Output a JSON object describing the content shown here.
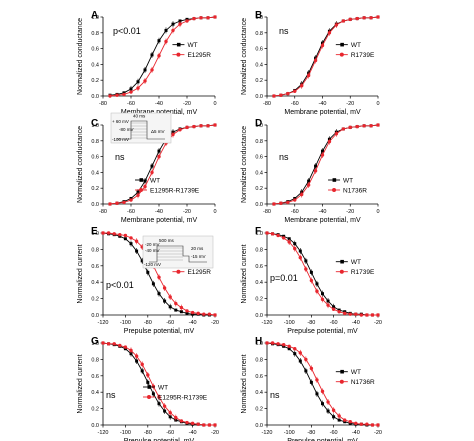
{
  "chart_data": [
    {
      "panel": "A",
      "type": "line",
      "xlabel": "Membrane potential, mV",
      "ylabel": "Normalized conductance",
      "xlim": [
        -80,
        0
      ],
      "ylim": [
        0,
        1
      ],
      "xticks": [
        "-80",
        "-60",
        "-40",
        "-20",
        "0"
      ],
      "yticks": [
        "0.0",
        "0.2",
        "0.4",
        "0.6",
        "0.8",
        "1.0"
      ],
      "annotation": "p<0.01",
      "legend_placement": "center-right",
      "series": [
        {
          "name": "WT",
          "color": "#000000",
          "marker": "square",
          "x": [
            -75,
            -70,
            -65,
            -60,
            -55,
            -50,
            -45,
            -40,
            -35,
            -30,
            -25,
            -20,
            -15,
            -10,
            -5,
            0
          ],
          "y": [
            0.01,
            0.02,
            0.04,
            0.09,
            0.18,
            0.33,
            0.52,
            0.7,
            0.83,
            0.91,
            0.95,
            0.97,
            0.98,
            0.99,
            0.99,
            1.0
          ]
        },
        {
          "name": "E1295R",
          "color": "#e8262e",
          "marker": "circle",
          "x": [
            -75,
            -70,
            -65,
            -60,
            -55,
            -50,
            -45,
            -40,
            -35,
            -30,
            -25,
            -20,
            -15,
            -10,
            -5,
            0
          ],
          "y": [
            0.0,
            0.01,
            0.02,
            0.05,
            0.1,
            0.19,
            0.33,
            0.51,
            0.69,
            0.83,
            0.91,
            0.95,
            0.98,
            0.99,
            0.99,
            1.0
          ]
        }
      ]
    },
    {
      "panel": "B",
      "type": "line",
      "xlabel": "Membrane potential, mV",
      "ylabel": "Normalized conductance",
      "xlim": [
        -80,
        0
      ],
      "ylim": [
        0,
        1
      ],
      "xticks": [
        "-80",
        "-60",
        "-40",
        "-20",
        "0"
      ],
      "yticks": [
        "0.0",
        "0.2",
        "0.4",
        "0.6",
        "0.8",
        "1.0"
      ],
      "annotation": "ns",
      "legend_placement": "center-right",
      "series": [
        {
          "name": "WT",
          "color": "#000000",
          "marker": "square",
          "x": [
            -75,
            -70,
            -65,
            -60,
            -55,
            -50,
            -45,
            -40,
            -35,
            -30,
            -25,
            -20,
            -15,
            -10,
            -5,
            0
          ],
          "y": [
            0.0,
            0.01,
            0.03,
            0.07,
            0.15,
            0.29,
            0.48,
            0.67,
            0.82,
            0.91,
            0.95,
            0.97,
            0.98,
            0.99,
            0.99,
            1.0
          ]
        },
        {
          "name": "R1739E",
          "color": "#e8262e",
          "marker": "circle",
          "x": [
            -75,
            -70,
            -65,
            -60,
            -55,
            -50,
            -45,
            -40,
            -35,
            -30,
            -25,
            -20,
            -15,
            -10,
            -5,
            0
          ],
          "y": [
            0.0,
            0.01,
            0.03,
            0.06,
            0.13,
            0.26,
            0.45,
            0.64,
            0.8,
            0.9,
            0.95,
            0.97,
            0.98,
            0.99,
            0.99,
            1.0
          ]
        }
      ]
    },
    {
      "panel": "C",
      "type": "line",
      "xlabel": "Membrane potential, mV",
      "ylabel": "Normalized conductance",
      "xlim": [
        -80,
        0
      ],
      "ylim": [
        0,
        1
      ],
      "xticks": [
        "-80",
        "-60",
        "-40",
        "-20",
        "0"
      ],
      "yticks": [
        "0.0",
        "0.2",
        "0.4",
        "0.6",
        "0.8",
        "1.0"
      ],
      "annotation": "ns",
      "legend_placement": "lower-right",
      "inset": [
        "40 ms",
        "+ 60 mV",
        "-80 mV",
        "-100 mV",
        "Δ5 mV"
      ],
      "series": [
        {
          "name": "WT",
          "color": "#000000",
          "marker": "square",
          "x": [
            -75,
            -70,
            -65,
            -60,
            -55,
            -50,
            -45,
            -40,
            -35,
            -30,
            -25,
            -20,
            -15,
            -10,
            -5,
            0
          ],
          "y": [
            0.0,
            0.01,
            0.03,
            0.07,
            0.15,
            0.29,
            0.48,
            0.67,
            0.82,
            0.91,
            0.95,
            0.97,
            0.98,
            0.99,
            0.99,
            1.0
          ]
        },
        {
          "name": "E1295R-R1739E",
          "color": "#e8262e",
          "marker": "circle",
          "x": [
            -75,
            -70,
            -65,
            -60,
            -55,
            -50,
            -45,
            -40,
            -35,
            -30,
            -25,
            -20,
            -15,
            -10,
            -5,
            0
          ],
          "y": [
            0.0,
            0.01,
            0.02,
            0.05,
            0.11,
            0.22,
            0.4,
            0.6,
            0.77,
            0.88,
            0.94,
            0.97,
            0.98,
            0.99,
            0.99,
            1.0
          ]
        }
      ]
    },
    {
      "panel": "D",
      "type": "line",
      "xlabel": "Membrane potential, mV",
      "ylabel": "Normalized conductance",
      "xlim": [
        -80,
        0
      ],
      "ylim": [
        0,
        1
      ],
      "xticks": [
        "-80",
        "-60",
        "-40",
        "-20",
        "0"
      ],
      "yticks": [
        "0.0",
        "0.2",
        "0.4",
        "0.6",
        "0.8",
        "1.0"
      ],
      "annotation": "ns",
      "legend_placement": "lower-right",
      "series": [
        {
          "name": "WT",
          "color": "#000000",
          "marker": "square",
          "x": [
            -75,
            -70,
            -65,
            -60,
            -55,
            -50,
            -45,
            -40,
            -35,
            -30,
            -25,
            -20,
            -15,
            -10,
            -5,
            0
          ],
          "y": [
            0.0,
            0.01,
            0.03,
            0.07,
            0.15,
            0.29,
            0.48,
            0.67,
            0.82,
            0.91,
            0.95,
            0.97,
            0.98,
            0.99,
            0.99,
            1.0
          ]
        },
        {
          "name": "N1736R",
          "color": "#e8262e",
          "marker": "circle",
          "x": [
            -75,
            -70,
            -65,
            -60,
            -55,
            -50,
            -45,
            -40,
            -35,
            -30,
            -25,
            -20,
            -15,
            -10,
            -5,
            0
          ],
          "y": [
            0.0,
            0.01,
            0.02,
            0.05,
            0.12,
            0.24,
            0.42,
            0.62,
            0.79,
            0.89,
            0.95,
            0.97,
            0.98,
            0.99,
            0.99,
            1.0
          ]
        }
      ]
    },
    {
      "panel": "E",
      "type": "line",
      "xlabel": "Prepulse potential, mV",
      "ylabel": "Normalized current",
      "xlim": [
        -120,
        -20
      ],
      "ylim": [
        0,
        1
      ],
      "xticks": [
        "-120",
        "-100",
        "-80",
        "-60",
        "-40",
        "-20"
      ],
      "yticks": [
        "0.0",
        "0.2",
        "0.4",
        "0.6",
        "0.8",
        "1.0"
      ],
      "annotation": "p<0.01",
      "legend_placement": "center-right",
      "inset": [
        "500 ms",
        "-20 mV",
        "-40 mV",
        "-120 mV",
        "20 ms",
        "-15 mV"
      ],
      "series": [
        {
          "name": "WT",
          "color": "#000000",
          "marker": "square",
          "x": [
            -120,
            -115,
            -110,
            -105,
            -100,
            -95,
            -90,
            -85,
            -80,
            -75,
            -70,
            -65,
            -60,
            -55,
            -50,
            -45,
            -40,
            -35,
            -30,
            -25,
            -20
          ],
          "y": [
            1.0,
            0.99,
            0.98,
            0.96,
            0.93,
            0.87,
            0.78,
            0.66,
            0.52,
            0.38,
            0.26,
            0.17,
            0.1,
            0.06,
            0.04,
            0.02,
            0.01,
            0.01,
            0.0,
            0.0,
            0.0
          ]
        },
        {
          "name": "E1295R",
          "color": "#e8262e",
          "marker": "circle",
          "x": [
            -120,
            -115,
            -110,
            -105,
            -100,
            -95,
            -90,
            -85,
            -80,
            -75,
            -70,
            -65,
            -60,
            -55,
            -50,
            -45,
            -40,
            -35,
            -30,
            -25,
            -20
          ],
          "y": [
            1.0,
            1.0,
            0.99,
            0.98,
            0.97,
            0.94,
            0.9,
            0.83,
            0.73,
            0.6,
            0.46,
            0.33,
            0.22,
            0.14,
            0.09,
            0.05,
            0.03,
            0.02,
            0.01,
            0.01,
            0.0
          ]
        }
      ]
    },
    {
      "panel": "F",
      "type": "line",
      "xlabel": "Prepulse potential, mV",
      "ylabel": "Normalized current",
      "xlim": [
        -120,
        -20
      ],
      "ylim": [
        0,
        1
      ],
      "xticks": [
        "-120",
        "-100",
        "-80",
        "-60",
        "-40",
        "-20"
      ],
      "yticks": [
        "0.0",
        "0.2",
        "0.4",
        "0.6",
        "0.8",
        "1.0"
      ],
      "annotation": "p=0.01",
      "legend_placement": "center-right",
      "series": [
        {
          "name": "WT",
          "color": "#000000",
          "marker": "square",
          "x": [
            -120,
            -115,
            -110,
            -105,
            -100,
            -95,
            -90,
            -85,
            -80,
            -75,
            -70,
            -65,
            -60,
            -55,
            -50,
            -45,
            -40,
            -35,
            -30,
            -25,
            -20
          ],
          "y": [
            1.0,
            0.99,
            0.98,
            0.96,
            0.93,
            0.87,
            0.78,
            0.66,
            0.52,
            0.38,
            0.26,
            0.17,
            0.1,
            0.06,
            0.04,
            0.02,
            0.01,
            0.01,
            0.0,
            0.0,
            0.0
          ]
        },
        {
          "name": "R1739E",
          "color": "#e8262e",
          "marker": "circle",
          "x": [
            -120,
            -115,
            -110,
            -105,
            -100,
            -95,
            -90,
            -85,
            -80,
            -75,
            -70,
            -65,
            -60,
            -55,
            -50,
            -45,
            -40,
            -35,
            -30,
            -25,
            -20
          ],
          "y": [
            1.0,
            0.99,
            0.97,
            0.94,
            0.89,
            0.81,
            0.7,
            0.56,
            0.42,
            0.29,
            0.19,
            0.12,
            0.07,
            0.04,
            0.02,
            0.01,
            0.01,
            0.0,
            0.0,
            0.0,
            0.0
          ]
        }
      ]
    },
    {
      "panel": "G",
      "type": "line",
      "xlabel": "Prepulse potential, mV",
      "ylabel": "Normalized current",
      "xlim": [
        -120,
        -20
      ],
      "ylim": [
        0,
        1
      ],
      "xticks": [
        "-120",
        "-100",
        "-80",
        "-60",
        "-40",
        "-20"
      ],
      "yticks": [
        "0.0",
        "0.2",
        "0.4",
        "0.6",
        "0.8",
        "1.0"
      ],
      "annotation": "ns",
      "legend_placement": "center-right",
      "series": [
        {
          "name": "WT",
          "color": "#000000",
          "marker": "square",
          "x": [
            -120,
            -115,
            -110,
            -105,
            -100,
            -95,
            -90,
            -85,
            -80,
            -75,
            -70,
            -65,
            -60,
            -55,
            -50,
            -45,
            -40,
            -35,
            -30,
            -25,
            -20
          ],
          "y": [
            1.0,
            0.99,
            0.98,
            0.96,
            0.93,
            0.87,
            0.78,
            0.66,
            0.52,
            0.38,
            0.26,
            0.17,
            0.1,
            0.06,
            0.04,
            0.02,
            0.01,
            0.01,
            0.0,
            0.0,
            0.0
          ]
        },
        {
          "name": "E1295R-R1739E",
          "color": "#e8262e",
          "marker": "circle",
          "x": [
            -120,
            -115,
            -110,
            -105,
            -100,
            -95,
            -90,
            -85,
            -80,
            -75,
            -70,
            -65,
            -60,
            -55,
            -50,
            -45,
            -40,
            -35,
            -30,
            -25,
            -20
          ],
          "y": [
            1.0,
            0.99,
            0.99,
            0.97,
            0.95,
            0.91,
            0.84,
            0.74,
            0.61,
            0.47,
            0.34,
            0.23,
            0.15,
            0.09,
            0.05,
            0.03,
            0.02,
            0.01,
            0.0,
            0.0,
            0.0
          ]
        }
      ]
    },
    {
      "panel": "H",
      "type": "line",
      "xlabel": "Prepulse potential, mV",
      "ylabel": "Normalized current",
      "xlim": [
        -120,
        -20
      ],
      "ylim": [
        0,
        1
      ],
      "xticks": [
        "-120",
        "-100",
        "-80",
        "-60",
        "-40",
        "-20"
      ],
      "yticks": [
        "0.0",
        "0.2",
        "0.4",
        "0.6",
        "0.8",
        "1.0"
      ],
      "annotation": "ns",
      "legend_placement": "center-right",
      "series": [
        {
          "name": "WT",
          "color": "#000000",
          "marker": "square",
          "x": [
            -120,
            -115,
            -110,
            -105,
            -100,
            -95,
            -90,
            -85,
            -80,
            -75,
            -70,
            -65,
            -60,
            -55,
            -50,
            -45,
            -40,
            -35,
            -30,
            -25,
            -20
          ],
          "y": [
            1.0,
            0.99,
            0.98,
            0.96,
            0.93,
            0.87,
            0.78,
            0.66,
            0.52,
            0.38,
            0.26,
            0.17,
            0.1,
            0.06,
            0.04,
            0.02,
            0.01,
            0.01,
            0.0,
            0.0,
            0.0
          ]
        },
        {
          "name": "N1736R",
          "color": "#e8262e",
          "marker": "circle",
          "x": [
            -120,
            -115,
            -110,
            -105,
            -100,
            -95,
            -90,
            -85,
            -80,
            -75,
            -70,
            -65,
            -60,
            -55,
            -50,
            -45,
            -40,
            -35,
            -30,
            -25,
            -20
          ],
          "y": [
            1.0,
            1.0,
            0.99,
            0.98,
            0.96,
            0.93,
            0.88,
            0.8,
            0.69,
            0.55,
            0.41,
            0.28,
            0.18,
            0.11,
            0.06,
            0.04,
            0.02,
            0.01,
            0.01,
            0.0,
            0.0
          ]
        }
      ]
    }
  ]
}
